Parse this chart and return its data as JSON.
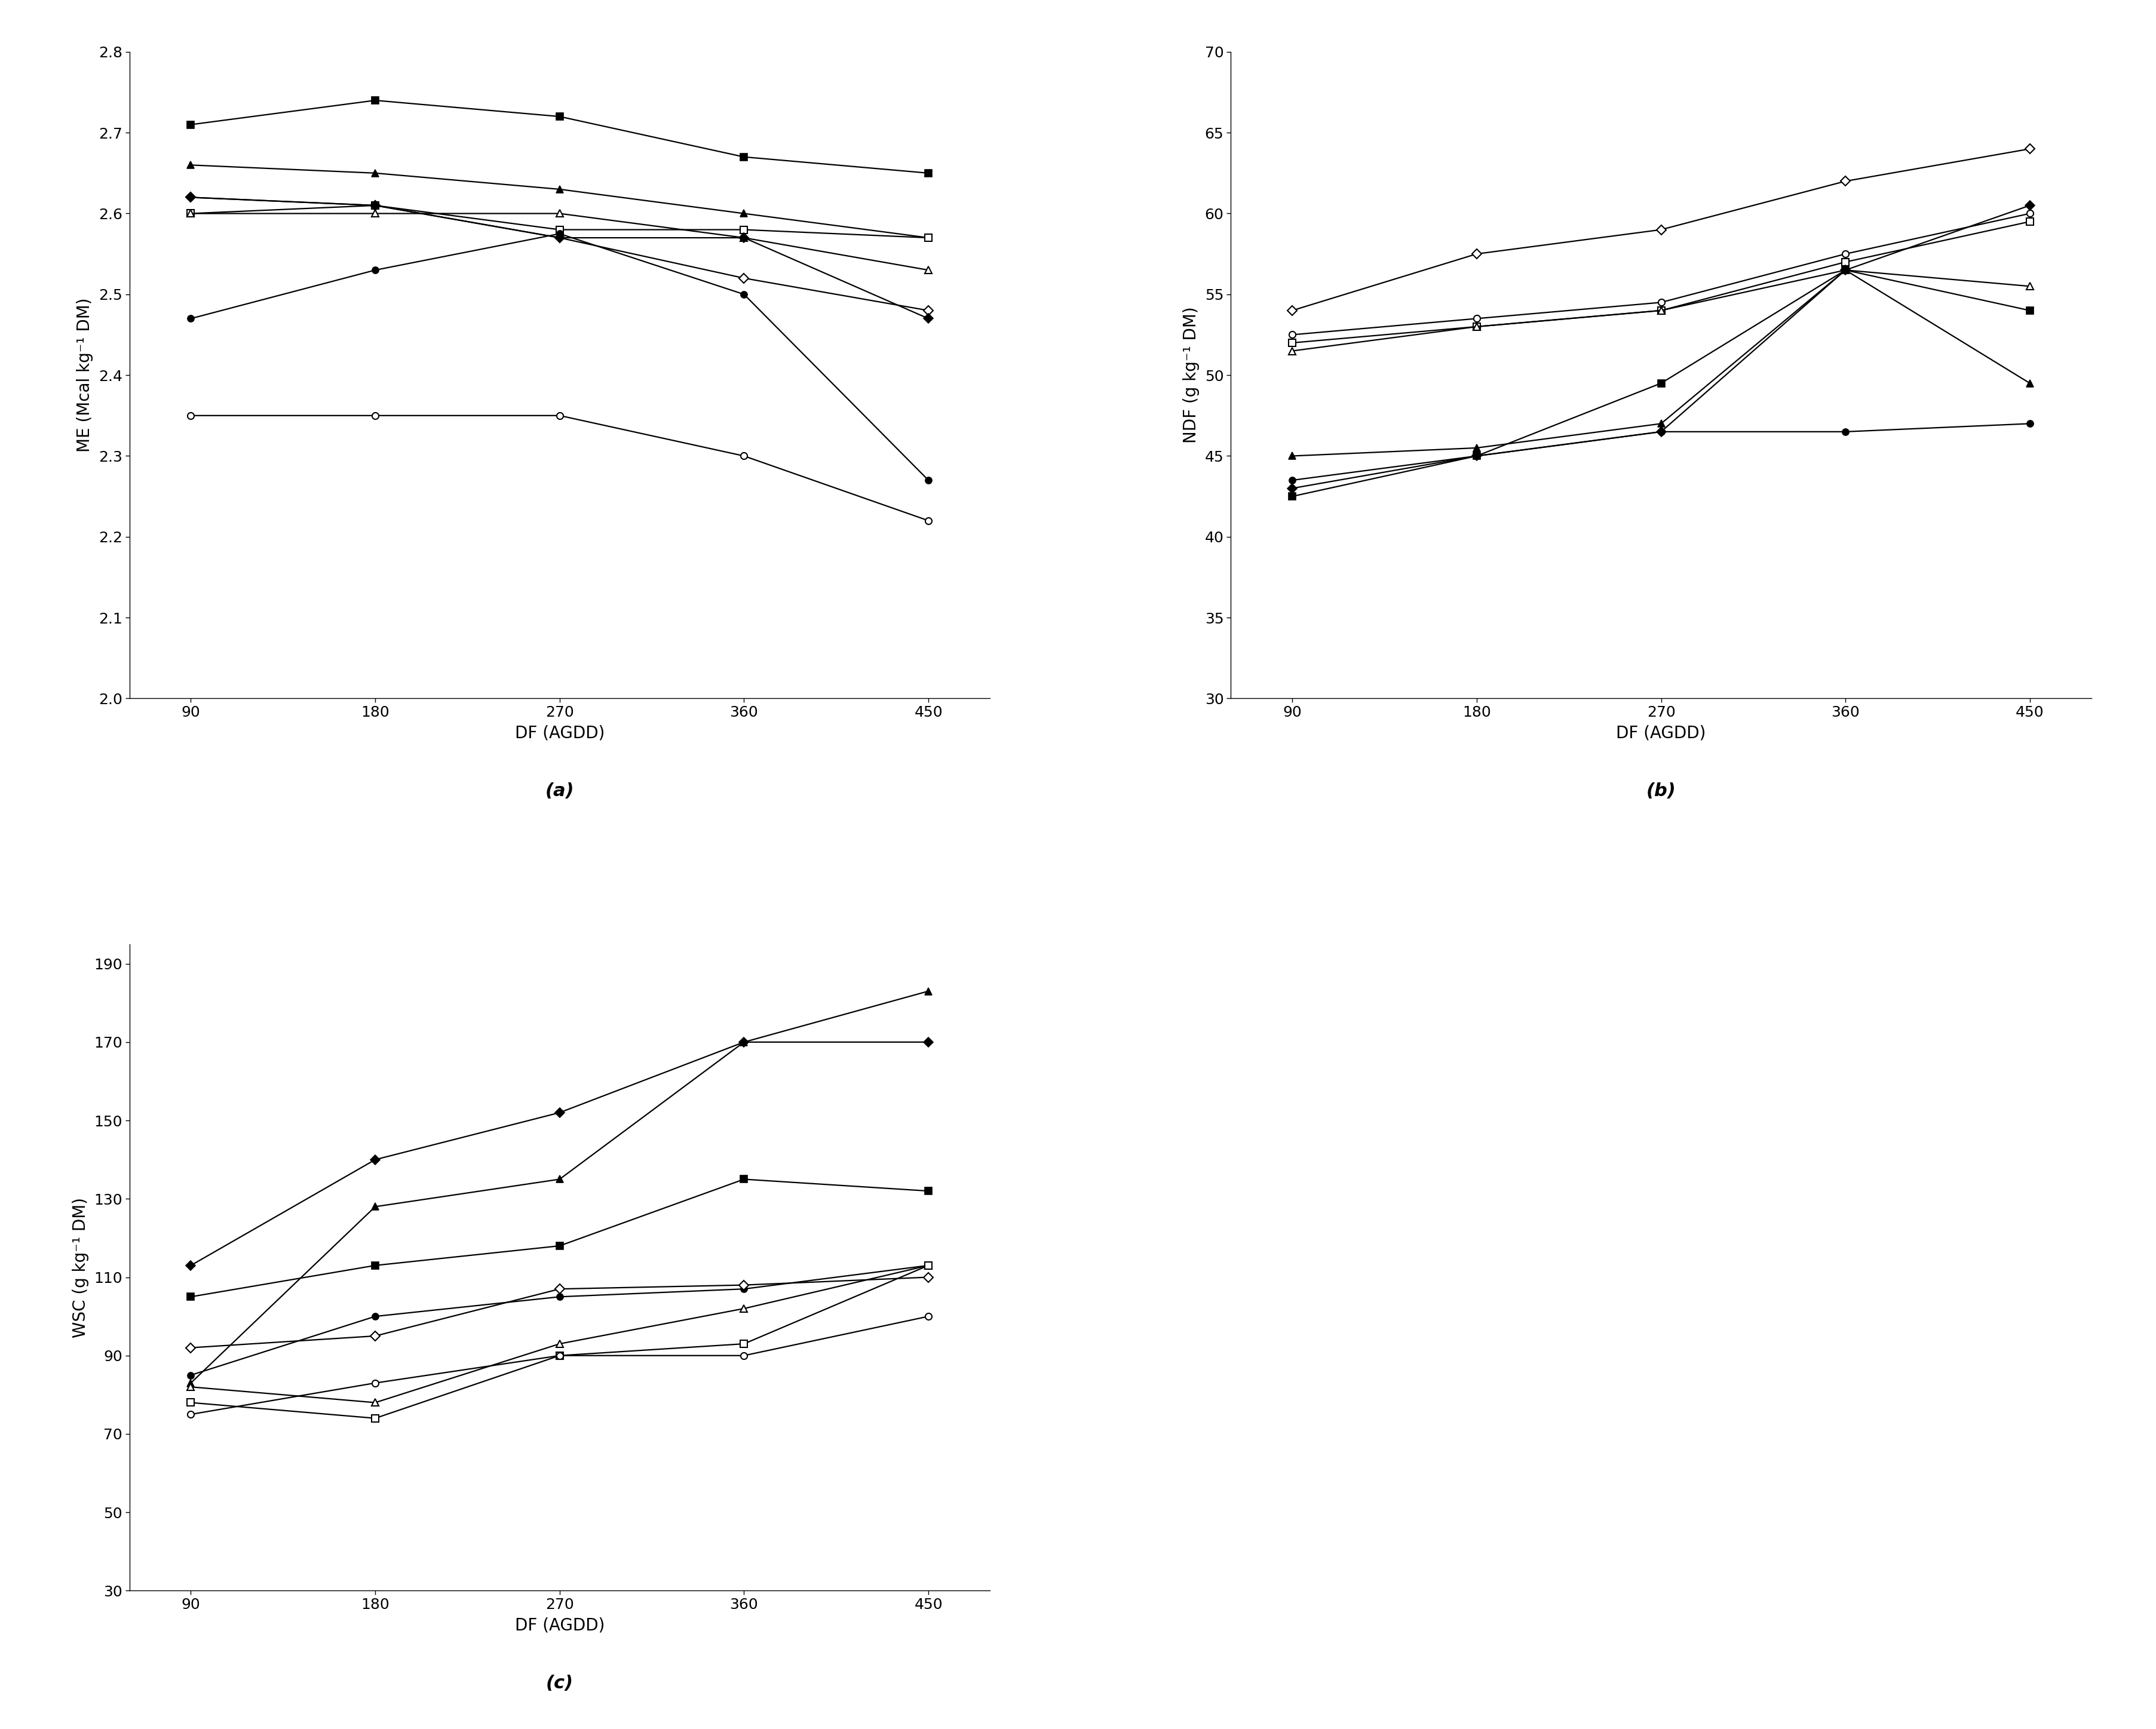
{
  "x": [
    90,
    180,
    270,
    360,
    450
  ],
  "ME_series": [
    {
      "marker": "s",
      "filled": true,
      "y": [
        2.71,
        2.74,
        2.72,
        2.67,
        2.65
      ]
    },
    {
      "marker": "^",
      "filled": true,
      "y": [
        2.66,
        2.65,
        2.63,
        2.6,
        2.57
      ]
    },
    {
      "marker": "D",
      "filled": false,
      "y": [
        2.62,
        2.61,
        2.57,
        2.52,
        2.48
      ]
    },
    {
      "marker": "s",
      "filled": false,
      "y": [
        2.6,
        2.61,
        2.58,
        2.58,
        2.57
      ]
    },
    {
      "marker": "^",
      "filled": false,
      "y": [
        2.6,
        2.6,
        2.6,
        2.57,
        2.53
      ]
    },
    {
      "marker": "D",
      "filled": true,
      "y": [
        2.62,
        2.61,
        2.57,
        2.57,
        2.47
      ]
    },
    {
      "marker": "o",
      "filled": true,
      "y": [
        2.47,
        2.53,
        2.575,
        2.5,
        2.27
      ]
    },
    {
      "marker": "o",
      "filled": false,
      "y": [
        2.35,
        2.35,
        2.35,
        2.3,
        2.22
      ]
    }
  ],
  "ME_ylabel": "ME (Mcal kg⁻¹ DM)",
  "ME_ylim": [
    2.0,
    2.8
  ],
  "ME_yticks": [
    2.0,
    2.1,
    2.2,
    2.3,
    2.4,
    2.5,
    2.6,
    2.7,
    2.8
  ],
  "NDF_series": [
    {
      "marker": "D",
      "filled": false,
      "y": [
        54.0,
        57.5,
        59.0,
        62.0,
        64.0
      ]
    },
    {
      "marker": "o",
      "filled": false,
      "y": [
        52.5,
        53.5,
        54.5,
        57.5,
        60.0
      ]
    },
    {
      "marker": "s",
      "filled": false,
      "y": [
        52.0,
        53.0,
        54.0,
        57.0,
        59.5
      ]
    },
    {
      "marker": "^",
      "filled": false,
      "y": [
        51.5,
        53.0,
        54.0,
        56.5,
        55.5
      ]
    },
    {
      "marker": "s",
      "filled": true,
      "y": [
        42.5,
        45.0,
        49.5,
        56.5,
        54.0
      ]
    },
    {
      "marker": "^",
      "filled": true,
      "y": [
        45.0,
        45.5,
        47.0,
        56.5,
        49.5
      ]
    },
    {
      "marker": "D",
      "filled": true,
      "y": [
        43.0,
        45.0,
        46.5,
        56.5,
        60.5
      ]
    },
    {
      "marker": "o",
      "filled": true,
      "y": [
        43.5,
        45.0,
        46.5,
        46.5,
        47.0
      ]
    }
  ],
  "NDF_ylabel": "NDF (g kg⁻¹ DM)",
  "NDF_ylim": [
    30,
    70
  ],
  "NDF_yticks": [
    30,
    35,
    40,
    45,
    50,
    55,
    60,
    65,
    70
  ],
  "WSC_series": [
    {
      "marker": "^",
      "filled": true,
      "y": [
        83,
        128,
        135,
        170,
        183
      ]
    },
    {
      "marker": "D",
      "filled": true,
      "y": [
        113,
        140,
        152,
        170,
        170
      ]
    },
    {
      "marker": "s",
      "filled": true,
      "y": [
        105,
        113,
        118,
        135,
        132
      ]
    },
    {
      "marker": "o",
      "filled": true,
      "y": [
        85,
        100,
        105,
        107,
        113
      ]
    },
    {
      "marker": "D",
      "filled": false,
      "y": [
        92,
        95,
        107,
        108,
        110
      ]
    },
    {
      "marker": "^",
      "filled": false,
      "y": [
        82,
        78,
        93,
        102,
        113
      ]
    },
    {
      "marker": "s",
      "filled": false,
      "y": [
        78,
        74,
        90,
        93,
        113
      ]
    },
    {
      "marker": "o",
      "filled": false,
      "y": [
        75,
        83,
        90,
        90,
        100
      ]
    }
  ],
  "WSC_ylabel": "WSC (g kg⁻¹ DM)",
  "WSC_ylim": [
    30,
    195
  ],
  "WSC_yticks": [
    30,
    50,
    70,
    90,
    110,
    130,
    150,
    170,
    190
  ],
  "xlabel": "DF (AGDD)",
  "xticks": [
    90,
    180,
    270,
    360,
    450
  ],
  "line_color": "black",
  "markersize": 8,
  "linewidth": 1.6,
  "label_fontsize": 20,
  "tick_fontsize": 18,
  "sublabel_fontsize": 22
}
